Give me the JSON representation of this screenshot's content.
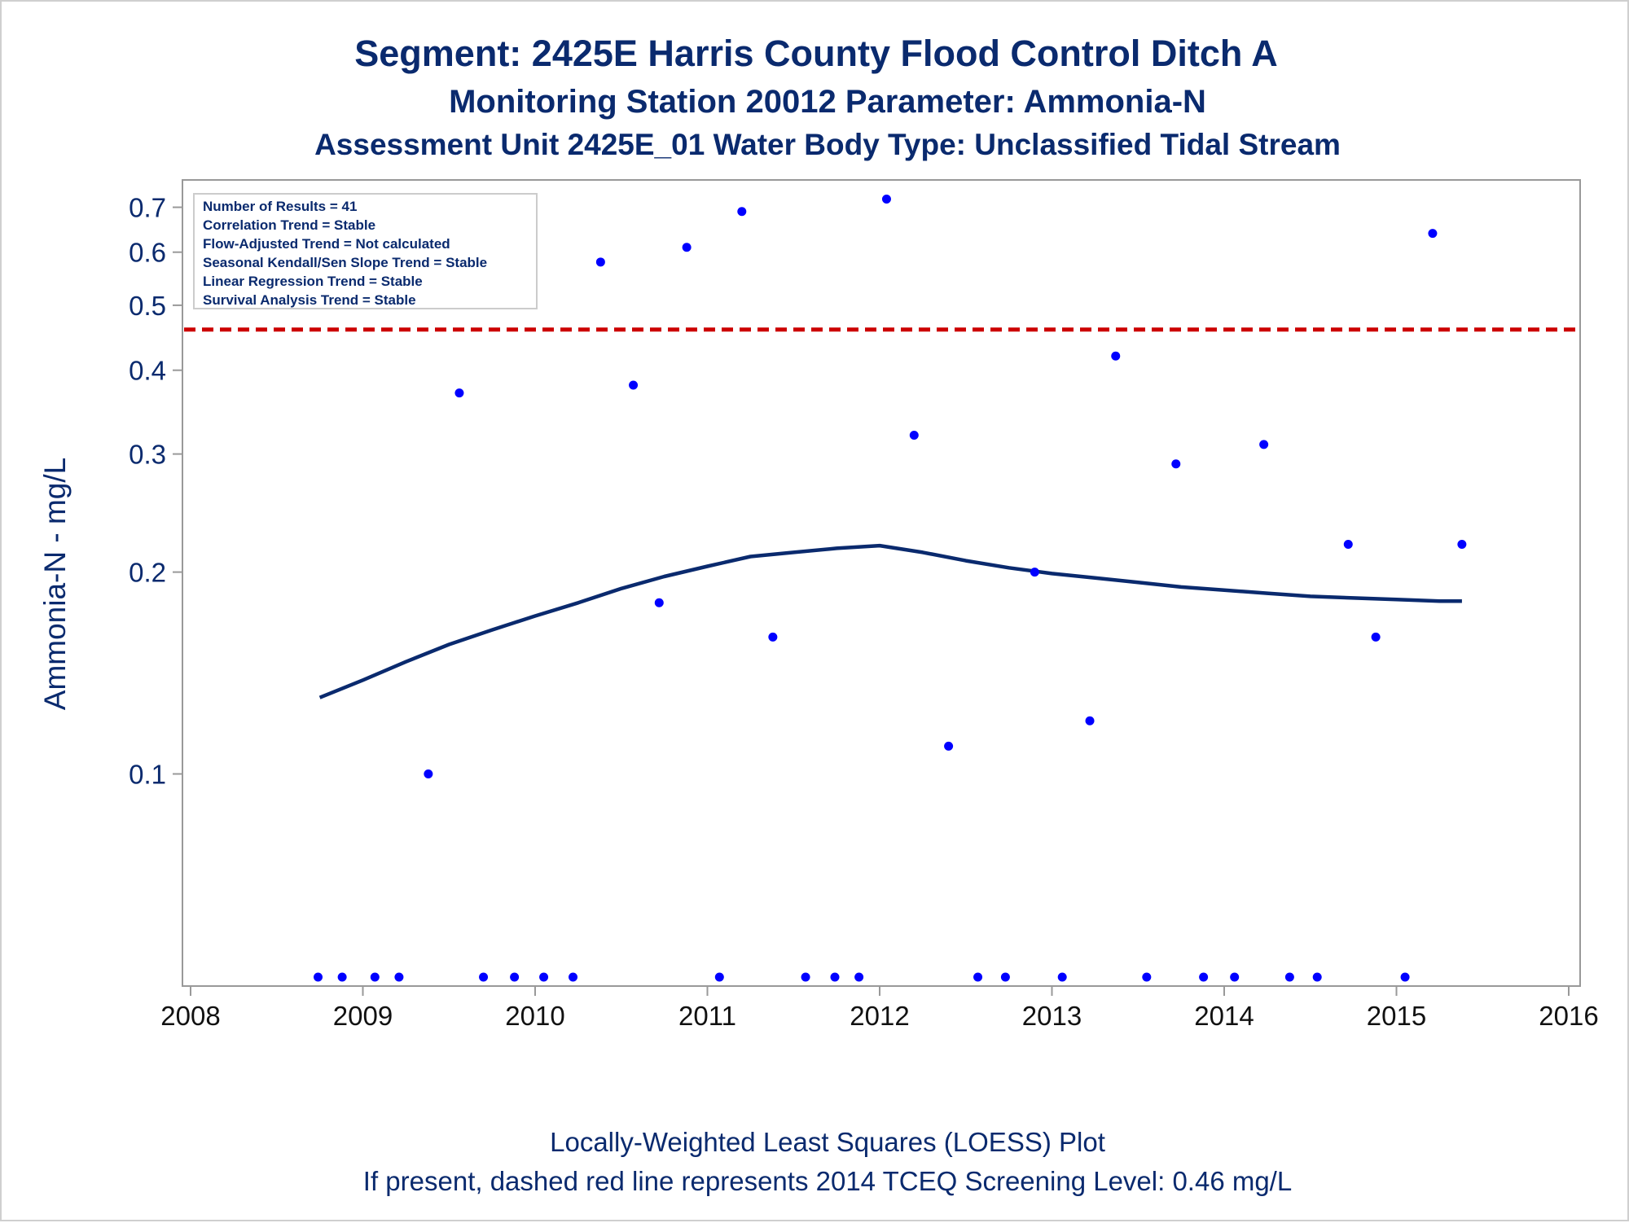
{
  "header": {
    "title": "Segment: 2425E  Harris County Flood Control Ditch A",
    "subtitle1": "Monitoring Station 20012 Parameter: Ammonia-N",
    "subtitle2": "Assessment Unit 2425E_01   Water Body Type: Unclassified Tidal Stream"
  },
  "footer": {
    "line1": "Locally-Weighted Least Squares (LOESS) Plot",
    "line2": "If present, dashed red line represents 2014 TCEQ Screening Level: 0.46 mg/L"
  },
  "colors": {
    "text": "#0a2a6e",
    "points": "#0000ff",
    "loess": "#0a2a6e",
    "screening": "#cc0000",
    "frame": "#999999"
  },
  "chart_data": {
    "type": "scatter",
    "ylabel": "Ammonia-N - mg/L",
    "y_scale": "log",
    "x_ticks": [
      "2008",
      "2009",
      "2010",
      "2011",
      "2012",
      "2013",
      "2014",
      "2015",
      "2016"
    ],
    "y_ticks": [
      "0.1",
      "0.2",
      "0.3",
      "0.4",
      "0.5",
      "0.6",
      "0.7"
    ],
    "xlim": [
      2008,
      2016
    ],
    "ylim": [
      0.05,
      0.75
    ],
    "stats_box": [
      "Number of Results = 41",
      "Correlation Trend = Stable",
      "Flow-Adjusted Trend = Not calculated",
      "Seasonal Kendall/Sen Slope Trend = Stable",
      "Linear Regression Trend = Stable",
      "Survival Analysis Trend = Stable"
    ],
    "screening_level": 0.46,
    "points": [
      {
        "x": 2008.74,
        "y": 0.05
      },
      {
        "x": 2008.88,
        "y": 0.05
      },
      {
        "x": 2009.07,
        "y": 0.05
      },
      {
        "x": 2009.21,
        "y": 0.05
      },
      {
        "x": 2009.38,
        "y": 0.1
      },
      {
        "x": 2009.56,
        "y": 0.37
      },
      {
        "x": 2009.7,
        "y": 0.05
      },
      {
        "x": 2009.88,
        "y": 0.05
      },
      {
        "x": 2010.05,
        "y": 0.05
      },
      {
        "x": 2010.22,
        "y": 0.05
      },
      {
        "x": 2010.38,
        "y": 0.58
      },
      {
        "x": 2010.57,
        "y": 0.38
      },
      {
        "x": 2010.72,
        "y": 0.18
      },
      {
        "x": 2010.88,
        "y": 0.61
      },
      {
        "x": 2011.07,
        "y": 0.05
      },
      {
        "x": 2011.2,
        "y": 0.69
      },
      {
        "x": 2011.38,
        "y": 0.16
      },
      {
        "x": 2011.57,
        "y": 0.05
      },
      {
        "x": 2011.74,
        "y": 0.05
      },
      {
        "x": 2011.88,
        "y": 0.05
      },
      {
        "x": 2012.04,
        "y": 0.72
      },
      {
        "x": 2012.2,
        "y": 0.32
      },
      {
        "x": 2012.4,
        "y": 0.11
      },
      {
        "x": 2012.57,
        "y": 0.05
      },
      {
        "x": 2012.73,
        "y": 0.05
      },
      {
        "x": 2012.9,
        "y": 0.2
      },
      {
        "x": 2013.06,
        "y": 0.05
      },
      {
        "x": 2013.22,
        "y": 0.12
      },
      {
        "x": 2013.37,
        "y": 0.42
      },
      {
        "x": 2013.55,
        "y": 0.05
      },
      {
        "x": 2013.72,
        "y": 0.29
      },
      {
        "x": 2013.88,
        "y": 0.05
      },
      {
        "x": 2014.06,
        "y": 0.05
      },
      {
        "x": 2014.23,
        "y": 0.31
      },
      {
        "x": 2014.38,
        "y": 0.05
      },
      {
        "x": 2014.54,
        "y": 0.05
      },
      {
        "x": 2014.72,
        "y": 0.22
      },
      {
        "x": 2014.88,
        "y": 0.16
      },
      {
        "x": 2015.05,
        "y": 0.05
      },
      {
        "x": 2015.21,
        "y": 0.64
      },
      {
        "x": 2015.38,
        "y": 0.22
      }
    ],
    "loess": [
      {
        "x": 2008.75,
        "y": 0.13
      },
      {
        "x": 2009.0,
        "y": 0.138
      },
      {
        "x": 2009.25,
        "y": 0.147
      },
      {
        "x": 2009.5,
        "y": 0.156
      },
      {
        "x": 2009.75,
        "y": 0.164
      },
      {
        "x": 2010.0,
        "y": 0.172
      },
      {
        "x": 2010.25,
        "y": 0.18
      },
      {
        "x": 2010.5,
        "y": 0.189
      },
      {
        "x": 2010.75,
        "y": 0.197
      },
      {
        "x": 2011.0,
        "y": 0.204
      },
      {
        "x": 2011.25,
        "y": 0.211
      },
      {
        "x": 2011.5,
        "y": 0.214
      },
      {
        "x": 2011.75,
        "y": 0.217
      },
      {
        "x": 2012.0,
        "y": 0.219
      },
      {
        "x": 2012.25,
        "y": 0.214
      },
      {
        "x": 2012.5,
        "y": 0.208
      },
      {
        "x": 2012.75,
        "y": 0.203
      },
      {
        "x": 2013.0,
        "y": 0.199
      },
      {
        "x": 2013.25,
        "y": 0.196
      },
      {
        "x": 2013.5,
        "y": 0.193
      },
      {
        "x": 2013.75,
        "y": 0.19
      },
      {
        "x": 2014.0,
        "y": 0.188
      },
      {
        "x": 2014.25,
        "y": 0.186
      },
      {
        "x": 2014.5,
        "y": 0.184
      },
      {
        "x": 2014.75,
        "y": 0.183
      },
      {
        "x": 2015.0,
        "y": 0.182
      },
      {
        "x": 2015.25,
        "y": 0.181
      },
      {
        "x": 2015.38,
        "y": 0.181
      }
    ]
  }
}
